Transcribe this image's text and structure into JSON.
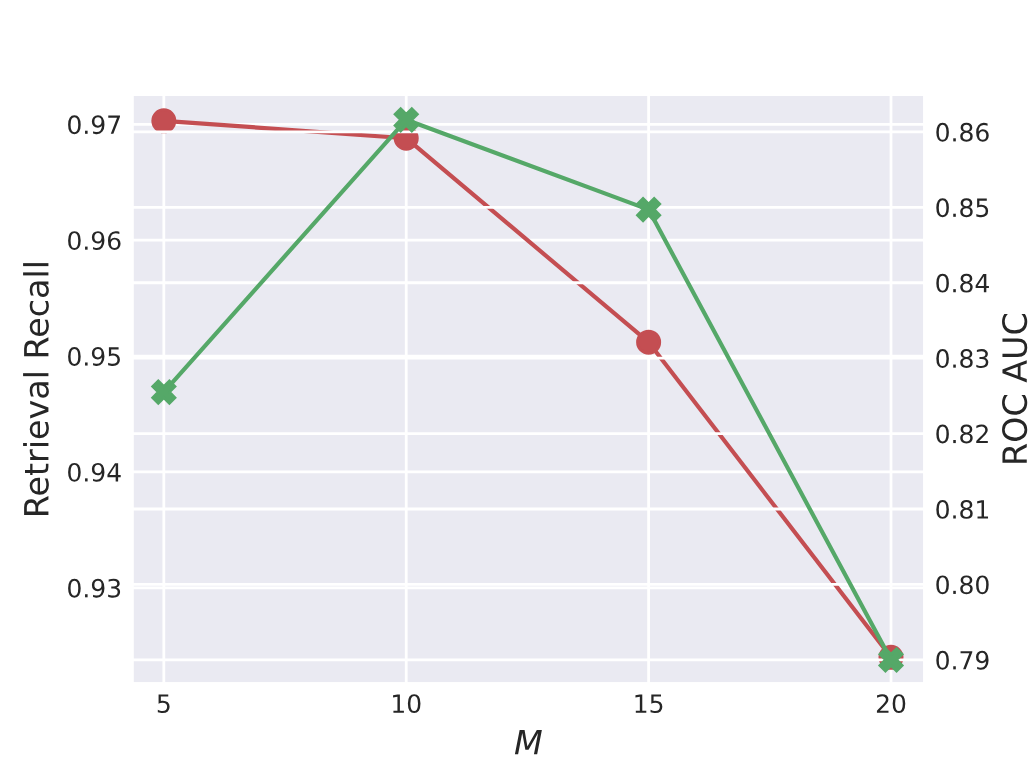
{
  "chart_data": {
    "type": "line",
    "xlabel": "M",
    "ylabel": "Retrieval Recall",
    "y2label": "ROC AUC",
    "x": [
      5,
      10,
      15,
      20
    ],
    "series": [
      {
        "color": "#c44e52",
        "marker": "circle",
        "values": [
          0.9703,
          0.9688,
          0.9512,
          0.924
        ]
      },
      {
        "color": "#55a868",
        "marker": "cross",
        "axis": "y2",
        "values": [
          0.8255,
          0.8616,
          0.8497,
          0.79
        ]
      }
    ],
    "xlim": [
      4.34,
      20.7
    ],
    "xticks": [
      5,
      10,
      15,
      20
    ],
    "ylim": [
      0.9217,
      0.9726
    ],
    "yticks": [
      0.93,
      0.94,
      0.95,
      0.96,
      0.97
    ],
    "y2lim": [
      0.7868,
      0.865
    ],
    "y2ticks": [
      0.79,
      {
        "value": 0.8,
        "label": "0.80"
      },
      0.81,
      0.82,
      0.83,
      0.84,
      0.85,
      0.86
    ],
    "grid": true,
    "line_style": "solid"
  }
}
